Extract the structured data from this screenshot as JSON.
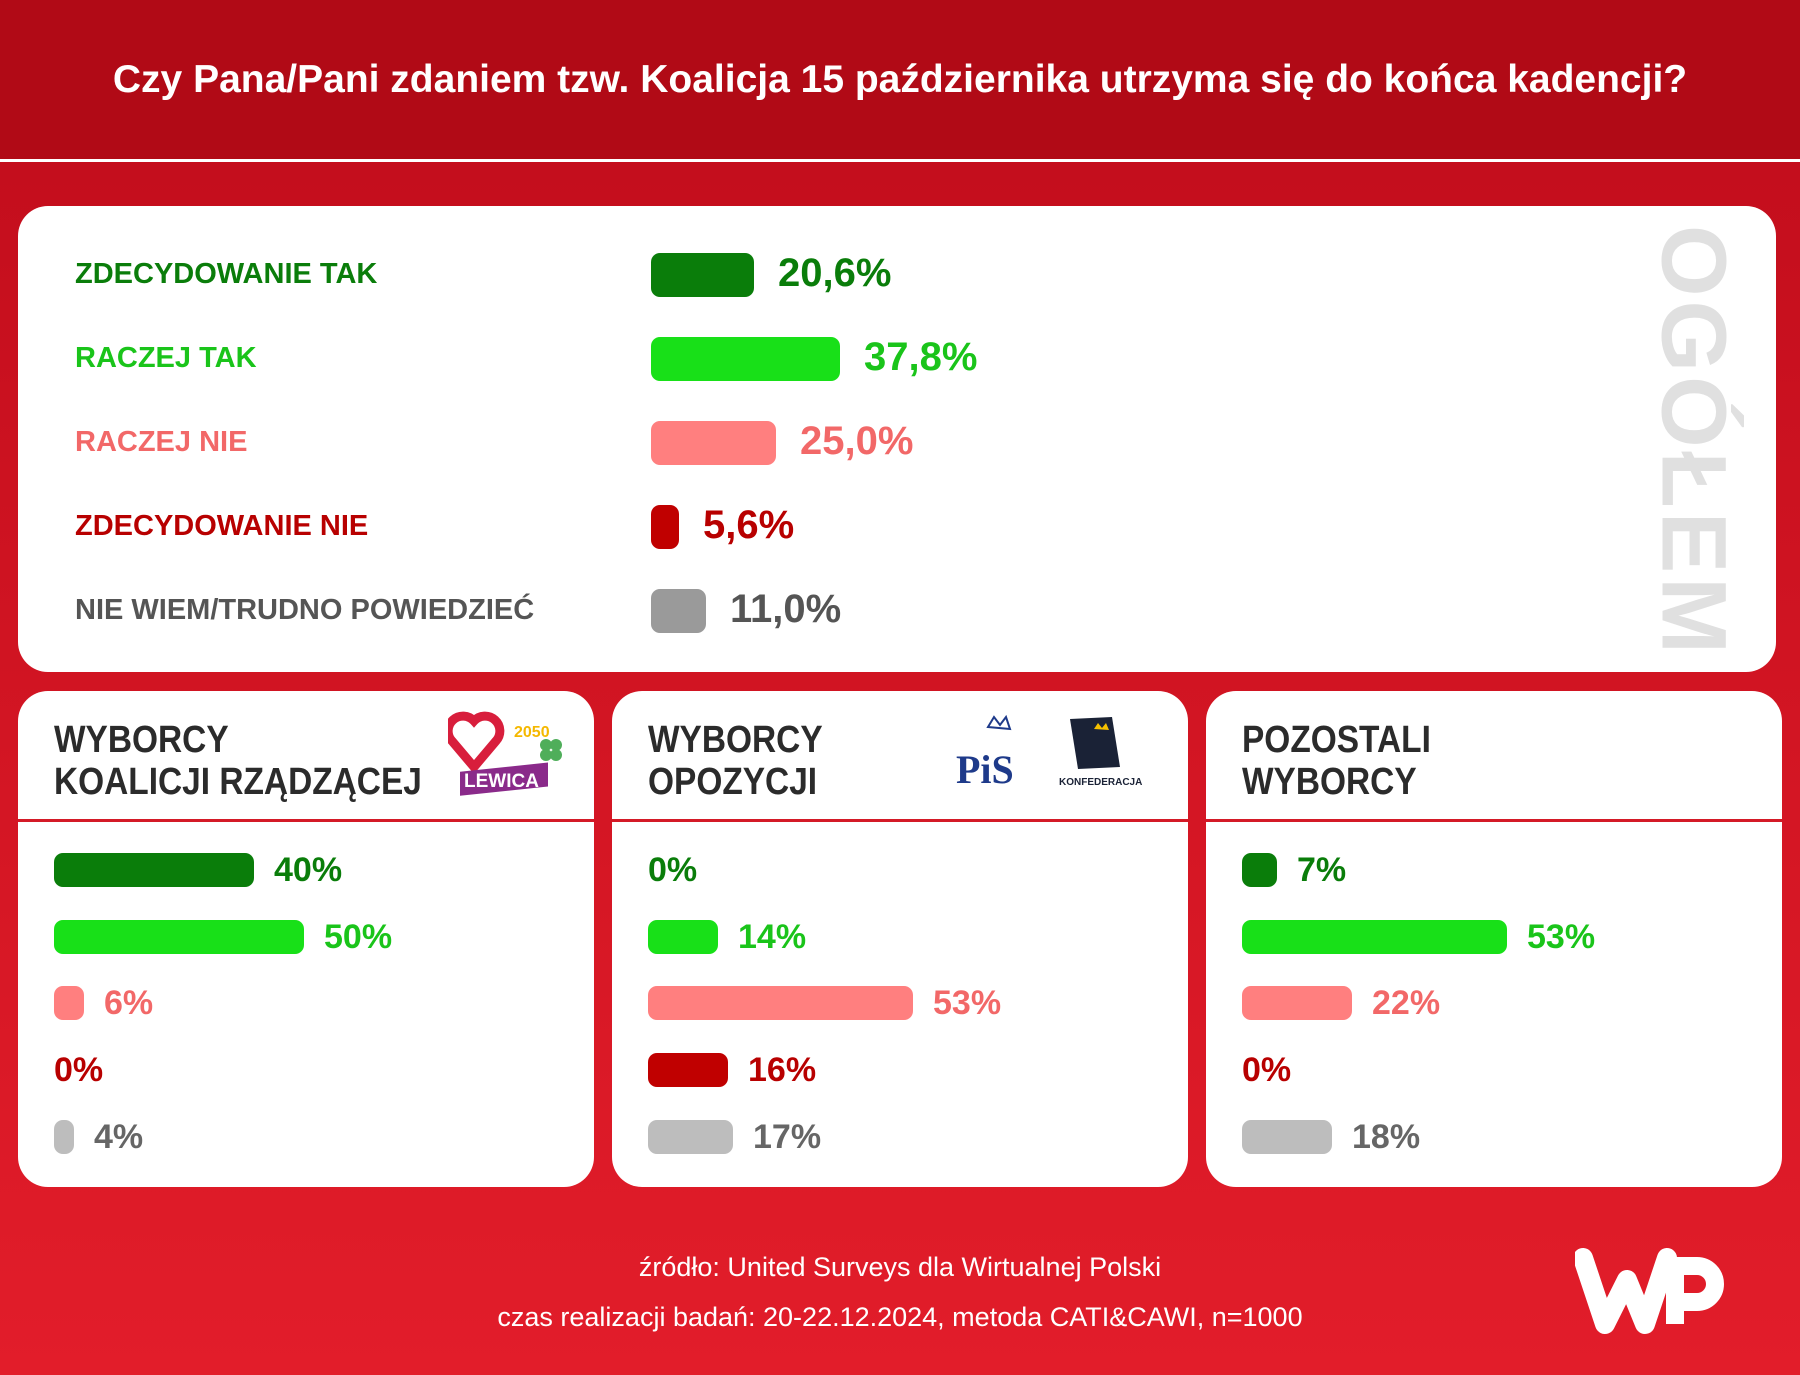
{
  "title": "Czy Pana/Pani zdaniem tzw. Koalicja 15 października utrzyma się do końca kadencji?",
  "colors": {
    "zdecydowanie_tak": "#0a7d0a",
    "raczej_tak": "#18e018",
    "raczej_nie": "#ff7f7f",
    "zdecydowanie_nie": "#c00000",
    "nie_wiem": "#9a9a9a"
  },
  "chart_data": [
    {
      "type": "bar",
      "title": "OGÓŁEM",
      "categories": [
        "ZDECYDOWANIE TAK",
        "RACZEJ TAK",
        "RACZEJ NIE",
        "ZDECYDOWANIE NIE",
        "NIE WIEM/TRUDNO POWIEDZIEĆ"
      ],
      "values": [
        20.6,
        37.8,
        25.0,
        5.6,
        11.0
      ],
      "labels": [
        "20,6%",
        "37,8%",
        "25,0%",
        "5,6%",
        "11,0%"
      ]
    },
    {
      "type": "bar",
      "title": "WYBORCY KOALICJI RZĄDZĄCEJ",
      "title_lines": [
        "WYBORCY",
        "KOALICJI RZĄDZĄCEJ"
      ],
      "values": [
        40,
        50,
        6,
        0,
        4
      ],
      "labels": [
        "40%",
        "50%",
        "6%",
        "0%",
        "4%"
      ]
    },
    {
      "type": "bar",
      "title": "WYBORCY OPOZYCJI",
      "title_lines": [
        "WYBORCY",
        "OPOZYCJI"
      ],
      "values": [
        0,
        14,
        53,
        16,
        17
      ],
      "labels": [
        "0%",
        "14%",
        "53%",
        "16%",
        "17%"
      ]
    },
    {
      "type": "bar",
      "title": "POZOSTALI WYBORCY",
      "title_lines": [
        "POZOSTALI",
        "WYBORCY"
      ],
      "values": [
        7,
        53,
        22,
        0,
        18
      ],
      "labels": [
        "7%",
        "53%",
        "22%",
        "0%",
        "18%"
      ]
    }
  ],
  "logos": {
    "koalicja": [
      "2050",
      "LEWICA"
    ],
    "opozycja": [
      "PiS",
      "KONFEDERACJA"
    ],
    "brand": "WP"
  },
  "footer": {
    "source": "źródło: United Surveys dla Wirtualnej Polski",
    "details": "czas realizacji badań: 20-22.12.2024, metoda CATI&CAWI, n=1000"
  }
}
